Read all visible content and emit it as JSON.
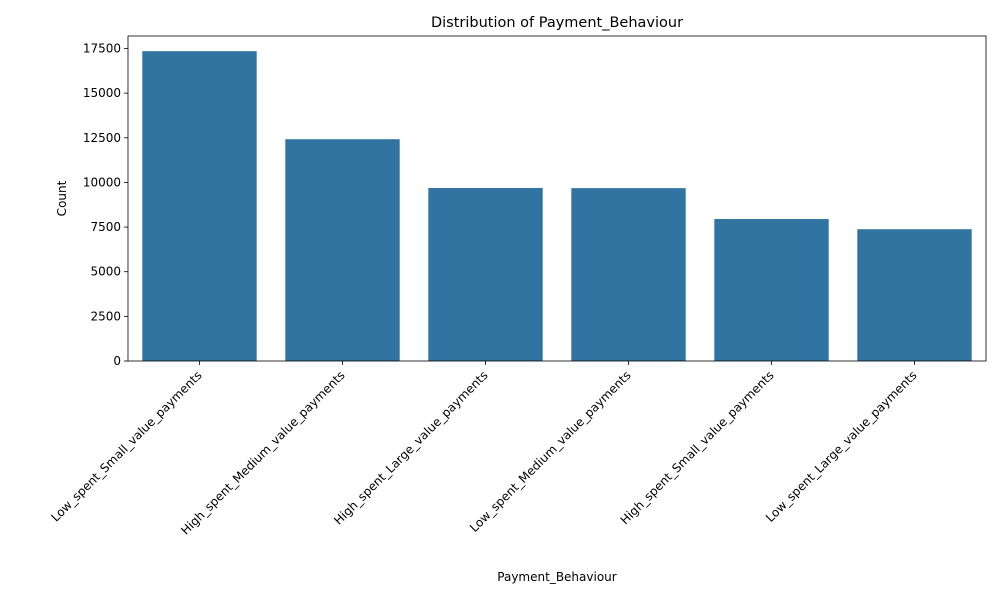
{
  "chart_data": {
    "type": "bar",
    "title": "Distribution of Payment_Behaviour",
    "xlabel": "Payment_Behaviour",
    "ylabel": "Count",
    "categories": [
      "Low_spent_Small_value_payments",
      "High_spent_Medium_value_payments",
      "High_spent_Large_value_payments",
      "Low_spent_Medium_value_payments",
      "High_spent_Small_value_payments",
      "Low_spent_Large_value_payments"
    ],
    "values": [
      17350,
      12420,
      9690,
      9680,
      7950,
      7380
    ],
    "ylim": [
      0,
      18200
    ],
    "yticks": [
      0,
      2500,
      5000,
      7500,
      10000,
      12500,
      15000,
      17500
    ],
    "ytick_labels": [
      "0",
      "2500",
      "5000",
      "7500",
      "10000",
      "12500",
      "15000",
      "17500"
    ],
    "grid": false,
    "bar_color": "#3274a1",
    "x_tick_rotation": 45
  }
}
